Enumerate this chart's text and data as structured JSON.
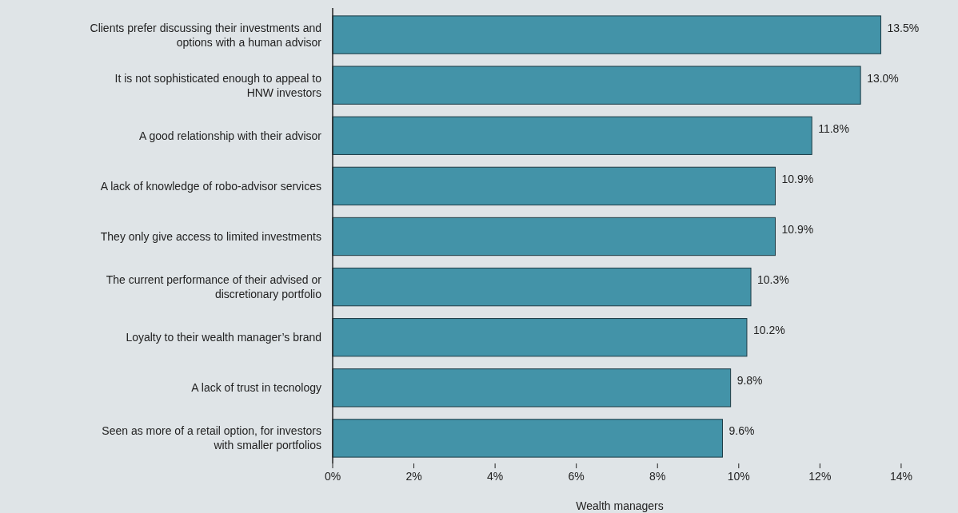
{
  "chart_data": {
    "type": "bar",
    "orientation": "horizontal",
    "xlabel": "Wealth managers",
    "categories": [
      "Clients prefer discussing their investments and options with a human advisor",
      "It is not sophisticated enough to appeal to HNW investors",
      "A good relationship with their advisor",
      "A lack of knowledge of robo-advisor services",
      "They only give access to limited investments",
      "The current performance of their advised or discretionary portfolio",
      "Loyalty to their wealth manager’s brand",
      "A lack of trust in tecnology",
      "Seen as more of a retail option, for investors with smaller portfolios"
    ],
    "values": [
      13.5,
      13.0,
      11.8,
      10.9,
      10.9,
      10.3,
      10.2,
      9.8,
      9.6
    ],
    "value_labels": [
      "13.5%",
      "13.0%",
      "11.8%",
      "10.9%",
      "10.9%",
      "10.3%",
      "10.2%",
      "9.8%",
      "9.6%"
    ],
    "color": "#4393a8",
    "xlim": [
      0,
      15.4
    ],
    "xticks": [
      {
        "value": 0,
        "label": "0%"
      },
      {
        "value": 2,
        "label": "2%"
      },
      {
        "value": 4,
        "label": "4%"
      },
      {
        "value": 6,
        "label": "6%"
      },
      {
        "value": 8,
        "label": "8%"
      },
      {
        "value": 10,
        "label": "10%"
      },
      {
        "value": 12,
        "label": "12%"
      },
      {
        "value": 14,
        "label": "14%"
      }
    ],
    "grid": false
  }
}
